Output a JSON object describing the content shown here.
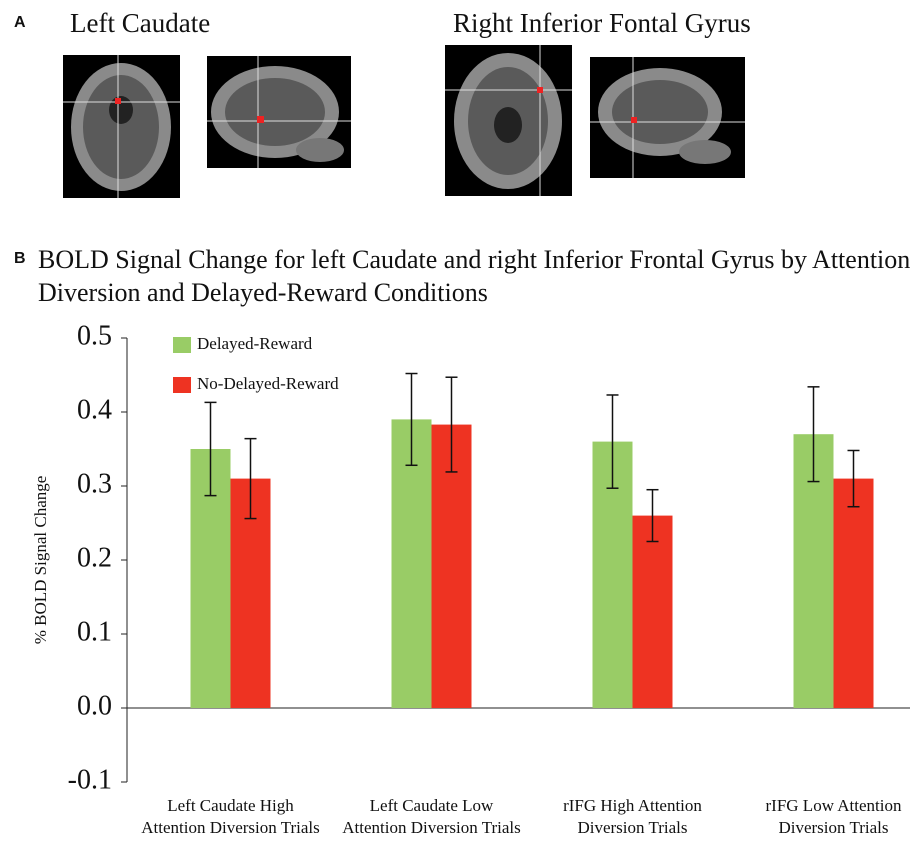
{
  "panels": [
    {
      "label": "A",
      "titles": [
        "Left Caudate",
        "Right Inferior Fontal Gyrus"
      ]
    },
    {
      "label": "B"
    }
  ],
  "chart_data": {
    "type": "bar",
    "title": "BOLD Signal Change for left Caudate and right Inferior Frontal Gyrus by Attention Diversion and Delayed-Reward Conditions",
    "y_label": "% BOLD Signal Change",
    "categories": [
      "Left Caudate High Attention Diversion Trials",
      "Left Caudate Low Attention Diversion Trials",
      "rIFG High Attention Diversion Trials",
      "rIFG Low Attention Diversion Trials"
    ],
    "series": [
      {
        "name": "Delayed-Reward",
        "color": "#99cc66",
        "values": [
          0.35,
          0.39,
          0.36,
          0.37
        ],
        "errors": [
          0.063,
          0.062,
          0.063,
          0.064
        ]
      },
      {
        "name": "No-Delayed-Reward",
        "color": "#ee3322",
        "values": [
          0.31,
          0.383,
          0.26,
          0.31
        ],
        "errors": [
          0.054,
          0.064,
          0.035,
          0.038
        ]
      }
    ],
    "ylim": [
      -0.1,
      0.5
    ],
    "yticks": [
      -0.1,
      {
        "value": 0,
        "label": "0.0"
      },
      0.1,
      0.2,
      0.3,
      0.4,
      0.5
    ],
    "legend": "upper left"
  }
}
